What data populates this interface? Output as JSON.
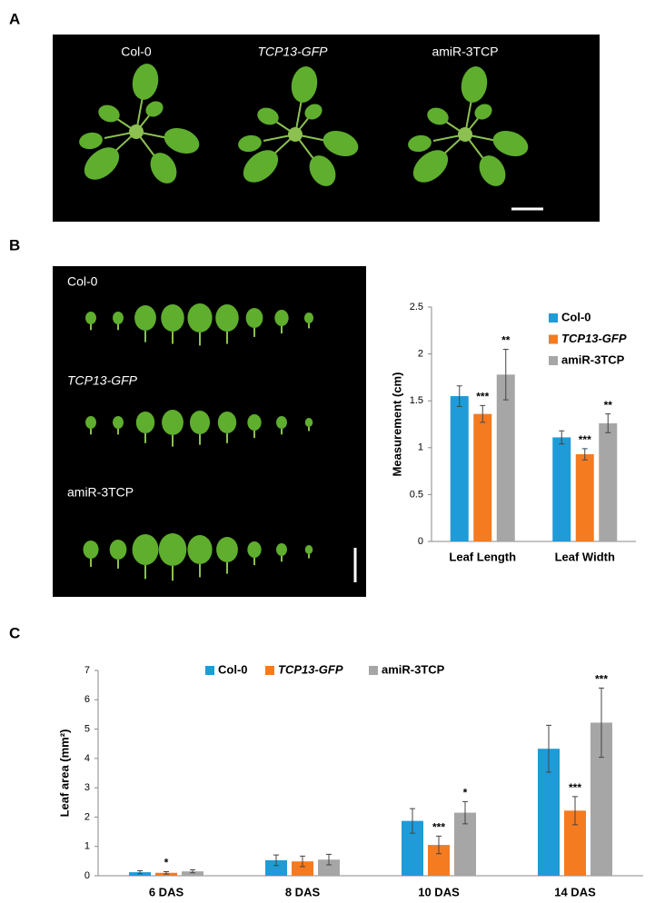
{
  "figure": {
    "panel_labels": [
      "A",
      "B",
      "C"
    ],
    "photo_a_labels": [
      "Col-0",
      "TCP13-GFP",
      "amiR-3TCP"
    ],
    "photo_b_labels": [
      "Col-0",
      "TCP13-GFP",
      "amiR-3TCP"
    ]
  },
  "chart_data": [
    {
      "type": "bar",
      "y_label": "Measurement (cm)",
      "categories": [
        "Leaf Length",
        "Leaf Width"
      ],
      "series": [
        {
          "name": "Col-0",
          "color": "#1f9bd7",
          "values": [
            1.55,
            1.11
          ],
          "errors": [
            0.11,
            0.07
          ],
          "significance": [
            null,
            null
          ]
        },
        {
          "name": "TCP13-GFP",
          "color": "#f47b20",
          "values": [
            1.36,
            0.93
          ],
          "errors": [
            0.09,
            0.06
          ],
          "significance": [
            "***",
            "***"
          ]
        },
        {
          "name": "amiR-3TCP",
          "color": "#a6a6a6",
          "values": [
            1.78,
            1.26
          ],
          "errors": [
            0.27,
            0.1
          ],
          "significance": [
            "**",
            "**"
          ]
        }
      ],
      "ylim": [
        0,
        2.5
      ],
      "yticks": [
        0,
        0.5,
        1,
        1.5,
        2,
        2.5
      ],
      "legend": "top-right"
    },
    {
      "type": "bar",
      "y_label": "Leaf area (mm²)",
      "categories": [
        "6 DAS",
        "8 DAS",
        "10 DAS",
        "14 DAS"
      ],
      "series": [
        {
          "name": "Col-0",
          "color": "#1f9bd7",
          "values": [
            0.12,
            0.53,
            1.87,
            4.33
          ],
          "errors": [
            0.05,
            0.18,
            0.42,
            0.8
          ],
          "significance": [
            null,
            null,
            null,
            null
          ]
        },
        {
          "name": "TCP13-GFP",
          "color": "#f47b20",
          "values": [
            0.1,
            0.49,
            1.05,
            2.22
          ],
          "errors": [
            0.04,
            0.18,
            0.3,
            0.48
          ],
          "significance": [
            "*",
            null,
            "***",
            "***"
          ]
        },
        {
          "name": "amiR-3TCP",
          "color": "#a6a6a6",
          "values": [
            0.15,
            0.55,
            2.15,
            5.22
          ],
          "errors": [
            0.05,
            0.18,
            0.38,
            1.18
          ],
          "significance": [
            null,
            null,
            "*",
            "***"
          ]
        }
      ],
      "ylim": [
        0,
        7
      ],
      "yticks": [
        0,
        1,
        2,
        3,
        4,
        5,
        6,
        7
      ],
      "legend": "top"
    }
  ]
}
